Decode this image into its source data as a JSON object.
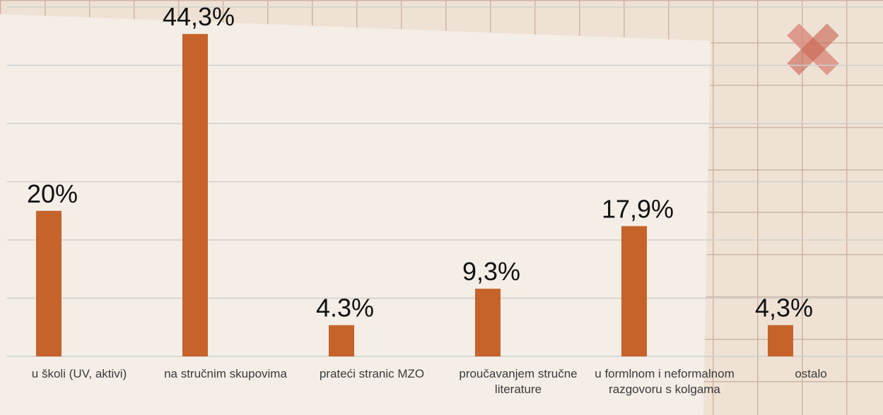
{
  "chart_data": {
    "type": "bar",
    "categories": [
      "u školi (UV, aktivi)",
      "na stručnim skupovima",
      "prateći stranic MZO",
      "proučavanjem stručne literature",
      "u formlnom i neformalnom razgovoru s kolgama",
      "ostalo"
    ],
    "values": [
      20,
      44.3,
      4.3,
      9.3,
      17.9,
      4.3
    ],
    "value_labels": [
      "20%",
      "44,3%",
      "4.3%",
      "9,3%",
      "17,9%",
      "4,3%"
    ],
    "color": "#c5632a",
    "ylim": [
      0,
      48
    ],
    "yticks": [
      0,
      8,
      16,
      24,
      32,
      40,
      48
    ],
    "grid": true
  }
}
